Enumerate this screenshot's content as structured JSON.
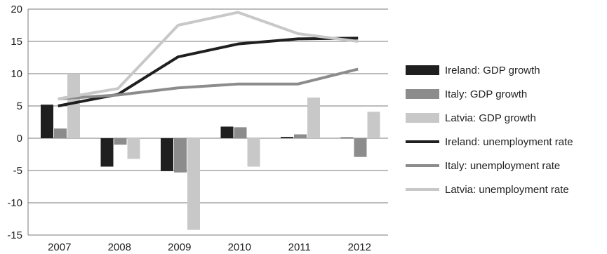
{
  "chart_data": {
    "type": "bar",
    "categories": [
      "2007",
      "2008",
      "2009",
      "2010",
      "2011",
      "2012"
    ],
    "ylim": [
      -15,
      20
    ],
    "yticks": [
      "-15",
      "-10",
      "-5",
      "0",
      "5",
      "10",
      "15",
      "20"
    ],
    "grid": true,
    "legend_position": "right",
    "series": [
      {
        "name": "Ireland: GDP growth",
        "kind": "bar",
        "color": "#1f1f1f",
        "values": [
          5.2,
          -4.4,
          -5.1,
          1.8,
          0.2,
          0.1
        ]
      },
      {
        "name": "Italy: GDP growth",
        "kind": "bar",
        "color": "#8c8c8c",
        "values": [
          1.5,
          -1.0,
          -5.3,
          1.7,
          0.6,
          -2.9
        ]
      },
      {
        "name": "Latvia: GDP growth",
        "kind": "bar",
        "color": "#c8c8c8",
        "values": [
          10.0,
          -3.2,
          -14.2,
          -4.4,
          6.3,
          4.1
        ]
      },
      {
        "name": "Ireland: unemployment rate",
        "kind": "line",
        "color": "#1f1f1f",
        "values": [
          5.0,
          6.8,
          12.6,
          14.6,
          15.4,
          15.5
        ]
      },
      {
        "name": "Italy: unemployment rate",
        "kind": "line",
        "color": "#8c8c8c",
        "values": [
          6.1,
          6.7,
          7.8,
          8.4,
          8.4,
          10.7
        ]
      },
      {
        "name": "Latvia: unemployment rate",
        "kind": "line",
        "color": "#c8c8c8",
        "values": [
          6.1,
          7.7,
          17.5,
          19.5,
          16.2,
          15.0
        ]
      }
    ]
  }
}
